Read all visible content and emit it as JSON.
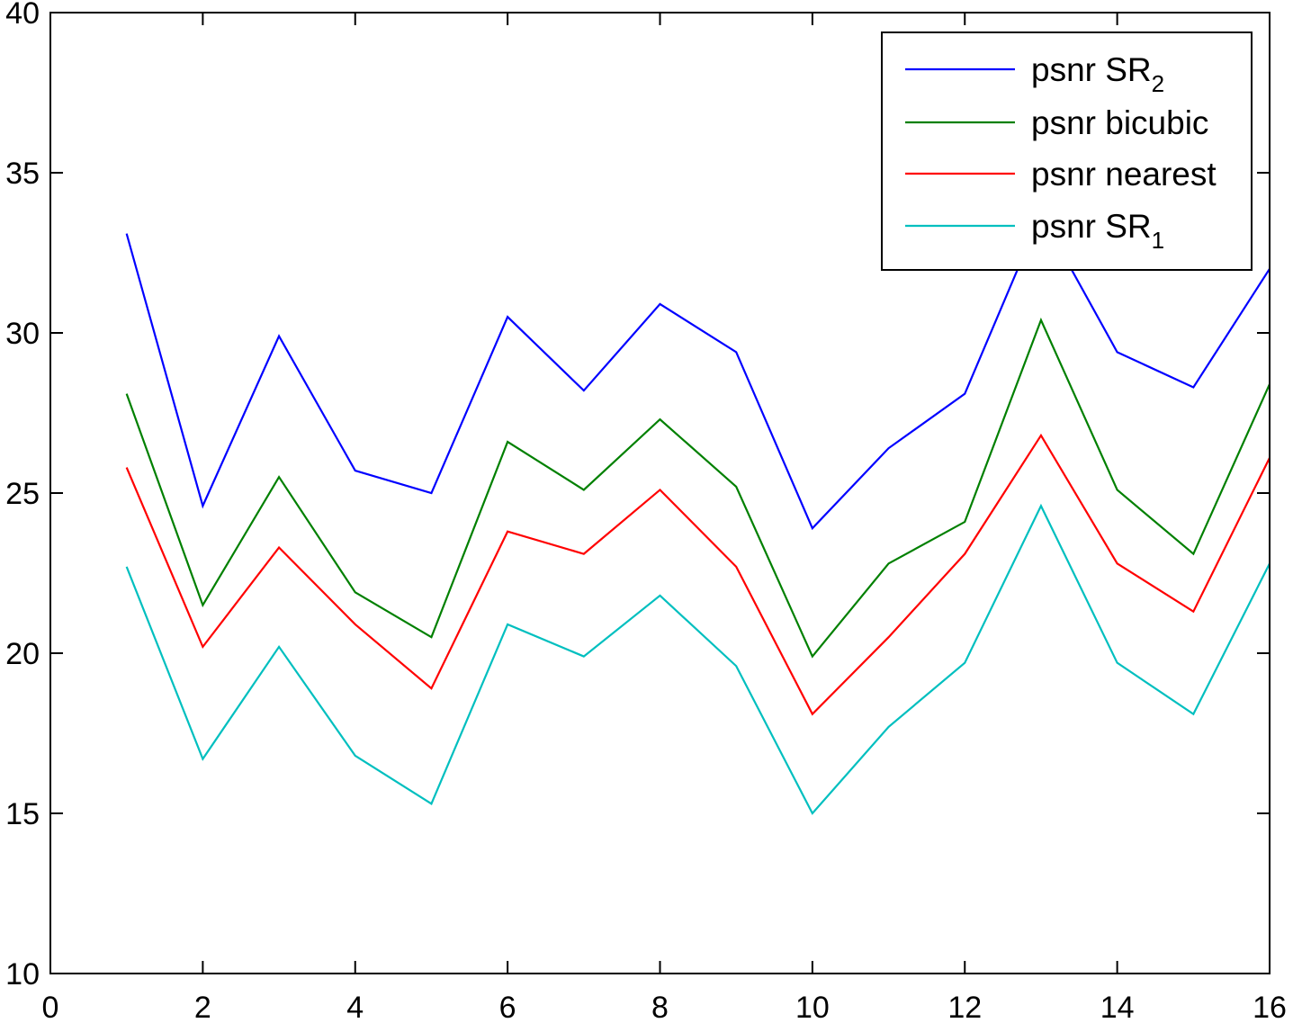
{
  "chart_data": {
    "type": "line",
    "x": [
      1,
      2,
      3,
      4,
      5,
      6,
      7,
      8,
      9,
      10,
      11,
      12,
      13,
      14,
      15,
      16
    ],
    "xlim": [
      0,
      16
    ],
    "ylim": [
      10,
      40
    ],
    "xticks": [
      0,
      2,
      4,
      6,
      8,
      10,
      12,
      14,
      16
    ],
    "yticks": [
      10,
      15,
      20,
      25,
      30,
      35,
      40
    ],
    "grid": false,
    "legend_position": "top-right",
    "series": [
      {
        "name": "psnr SR",
        "name_sub": "2",
        "color": "#0000ff",
        "values": [
          33.1,
          24.6,
          29.9,
          25.7,
          25.0,
          30.5,
          28.2,
          30.9,
          29.4,
          23.9,
          26.4,
          28.1,
          33.7,
          29.4,
          28.3,
          32.0
        ]
      },
      {
        "name": "psnr bicubic",
        "color": "#008000",
        "values": [
          28.1,
          21.5,
          25.5,
          21.9,
          20.5,
          26.6,
          25.1,
          27.3,
          25.2,
          19.9,
          22.8,
          24.1,
          30.4,
          25.1,
          23.1,
          28.4
        ]
      },
      {
        "name": "psnr nearest",
        "color": "#ff0000",
        "values": [
          25.8,
          20.2,
          23.3,
          20.9,
          18.9,
          23.8,
          23.1,
          25.1,
          22.7,
          18.1,
          20.5,
          23.1,
          26.8,
          22.8,
          21.3,
          26.1
        ]
      },
      {
        "name": "psnr SR",
        "name_sub": "1",
        "color": "#00bfbf",
        "values": [
          22.7,
          16.7,
          20.2,
          16.8,
          15.3,
          20.9,
          19.9,
          21.8,
          19.6,
          15.0,
          17.7,
          19.7,
          24.6,
          19.7,
          18.1,
          22.8
        ]
      }
    ]
  }
}
